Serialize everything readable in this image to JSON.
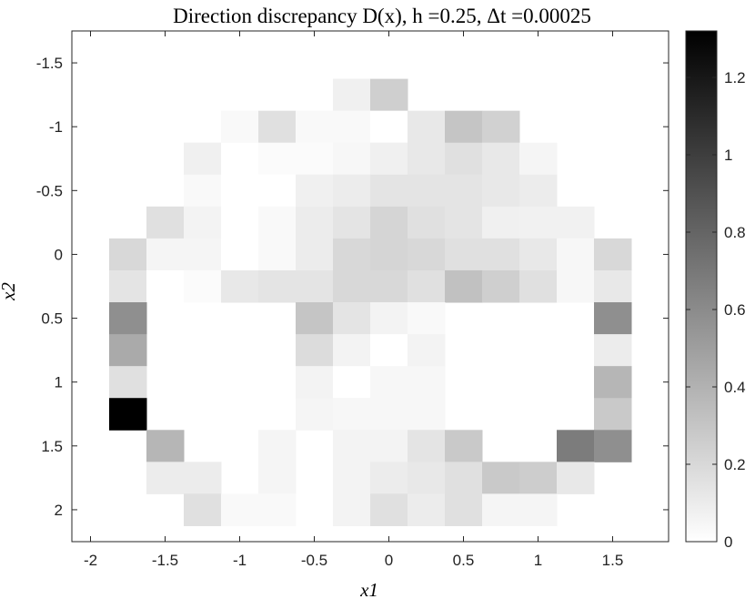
{
  "chart_data": {
    "type": "heatmap",
    "title": "Direction discrepancy D(x), h =0.25, Δt =0.00025",
    "xlabel": "x1",
    "ylabel": "x2",
    "x_range": [
      -2.125,
      1.875
    ],
    "y_range": [
      -1.75,
      2.25
    ],
    "y_direction": "reversed",
    "cell_size": 0.25,
    "x_ticks": [
      -2,
      -1.5,
      -1,
      -0.5,
      0,
      0.5,
      1,
      1.5
    ],
    "x_tick_labels": [
      "-2",
      "-1.5",
      "-1",
      "-0.5",
      "0",
      "0.5",
      "1",
      "1.5"
    ],
    "y_ticks": [
      -1.5,
      -1,
      -0.5,
      0,
      0.5,
      1,
      1.5,
      2
    ],
    "y_tick_labels": [
      "-1.5",
      "-1",
      "-0.5",
      "0",
      "0.5",
      "1",
      "1.5",
      "2"
    ],
    "colorbar": {
      "colormap": "gray-reversed",
      "range": [
        0,
        1.32
      ],
      "ticks": [
        0,
        0.2,
        0.4,
        0.6,
        0.8,
        1,
        1.2
      ],
      "tick_labels": [
        "0",
        "0.2",
        "0.4",
        "0.6",
        "0.8",
        "1",
        "1.2"
      ]
    },
    "x_centers": [
      -1.75,
      -1.5,
      -1.25,
      -1.0,
      -0.75,
      -0.5,
      -0.25,
      0.0,
      0.25,
      0.5,
      0.75,
      1.0,
      1.25,
      1.5
    ],
    "y_centers": [
      -1.25,
      -1.0,
      -0.75,
      -0.5,
      -0.25,
      0.0,
      0.25,
      0.5,
      0.75,
      1.0,
      1.25,
      1.5,
      1.75,
      2.0
    ],
    "values": [
      [
        null,
        null,
        null,
        null,
        null,
        null,
        0.08,
        0.25,
        null,
        null,
        null,
        null,
        null,
        null
      ],
      [
        null,
        null,
        null,
        0.03,
        0.16,
        0.03,
        0.03,
        0.0,
        0.12,
        0.3,
        0.24,
        null,
        null,
        null
      ],
      [
        null,
        null,
        0.08,
        0.0,
        0.02,
        0.02,
        0.04,
        0.08,
        0.12,
        0.16,
        0.12,
        0.05,
        null,
        null
      ],
      [
        null,
        null,
        0.03,
        0.0,
        0.0,
        0.08,
        0.1,
        0.14,
        0.14,
        0.14,
        0.12,
        0.1,
        null,
        null
      ],
      [
        null,
        0.16,
        0.06,
        0.0,
        0.03,
        0.1,
        0.14,
        0.22,
        0.16,
        0.14,
        0.08,
        0.07,
        0.07,
        null
      ],
      [
        0.2,
        0.05,
        0.05,
        0.0,
        0.03,
        0.1,
        0.2,
        0.22,
        0.2,
        0.16,
        0.16,
        0.12,
        0.04,
        0.2
      ],
      [
        0.14,
        0.0,
        0.02,
        0.12,
        0.14,
        0.14,
        0.2,
        0.2,
        0.16,
        0.32,
        0.25,
        0.16,
        0.04,
        0.12
      ],
      [
        0.58,
        null,
        null,
        null,
        null,
        0.3,
        0.14,
        0.06,
        0.03,
        null,
        null,
        null,
        null,
        0.58
      ],
      [
        0.44,
        null,
        null,
        null,
        null,
        0.18,
        0.06,
        0.0,
        0.06,
        null,
        null,
        null,
        null,
        0.1
      ],
      [
        0.16,
        null,
        null,
        null,
        null,
        0.06,
        0.0,
        0.04,
        0.04,
        null,
        null,
        null,
        null,
        0.38
      ],
      [
        1.32,
        null,
        null,
        null,
        null,
        0.05,
        0.04,
        0.04,
        0.04,
        null,
        null,
        null,
        null,
        0.28
      ],
      [
        null,
        0.38,
        null,
        null,
        0.05,
        null,
        0.06,
        0.06,
        0.14,
        0.28,
        null,
        null,
        0.68,
        0.58
      ],
      [
        null,
        0.1,
        0.1,
        null,
        0.05,
        null,
        0.06,
        0.1,
        0.12,
        0.16,
        0.28,
        0.26,
        0.12,
        null
      ],
      [
        null,
        null,
        0.16,
        0.03,
        0.03,
        null,
        0.06,
        0.16,
        0.1,
        0.16,
        0.05,
        0.05,
        null,
        null
      ]
    ]
  }
}
